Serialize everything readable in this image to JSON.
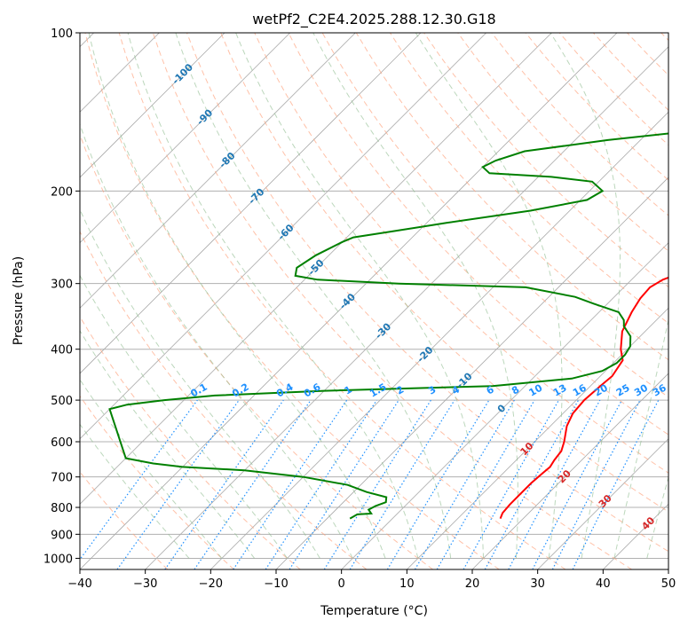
{
  "chart_data": {
    "type": "skew-t",
    "title": "wetPf2_C2E4.2025.288.12.30.G18",
    "xlabel": "Temperature (°C)",
    "ylabel": "Pressure (hPa)",
    "xlim": [
      -40,
      50
    ],
    "ylim": [
      1050,
      100
    ],
    "x_ticks": [
      {
        "value": -40,
        "label": "−40"
      },
      {
        "value": -30,
        "label": "−30"
      },
      {
        "value": -20,
        "label": "−20"
      },
      {
        "value": -10,
        "label": "−10"
      },
      {
        "value": 0,
        "label": "0"
      },
      {
        "value": 10,
        "label": "10"
      },
      {
        "value": 20,
        "label": "20"
      },
      {
        "value": 30,
        "label": "30"
      },
      {
        "value": 40,
        "label": "40"
      },
      {
        "value": 50,
        "label": "50"
      }
    ],
    "y_ticks": [
      {
        "value": 100,
        "label": "100"
      },
      {
        "value": 200,
        "label": "200"
      },
      {
        "value": 300,
        "label": "300"
      },
      {
        "value": 400,
        "label": "400"
      },
      {
        "value": 500,
        "label": "500"
      },
      {
        "value": 600,
        "label": "600"
      },
      {
        "value": 700,
        "label": "700"
      },
      {
        "value": 800,
        "label": "800"
      },
      {
        "value": 900,
        "label": "900"
      },
      {
        "value": 1000,
        "label": "1000"
      }
    ],
    "colors": {
      "temperature": "#ff0000",
      "dewpoint": "#008000",
      "isotherm": "#aaaaaa",
      "dry_adiabat": "#ffa07a",
      "moist_adiabat": "#8fbc8f",
      "mixing_ratio": "#1e90ff",
      "grid": "#b0b0b0",
      "isotherm_label": "#1f77b4",
      "dry_label": "#d62728",
      "mixing_label": "#1e90ff"
    },
    "series": [
      {
        "name": "Temperature",
        "color": "#ff0000",
        "points": [
          [
            16.5,
            840
          ],
          [
            16,
            820
          ],
          [
            15.8,
            790
          ],
          [
            15.8,
            760
          ],
          [
            15.8,
            720
          ],
          [
            16,
            690
          ],
          [
            16.2,
            670
          ],
          [
            15.8,
            650
          ],
          [
            15.5,
            625
          ],
          [
            14.5,
            600
          ],
          [
            12.5,
            560
          ],
          [
            11.5,
            530
          ],
          [
            11.2,
            500
          ],
          [
            11.5,
            470
          ],
          [
            11.8,
            450
          ],
          [
            11,
            420
          ],
          [
            9,
            400
          ],
          [
            6.5,
            370
          ],
          [
            5,
            340
          ],
          [
            4.2,
            320
          ],
          [
            4,
            305
          ],
          [
            4.8,
            295
          ],
          [
            6.8,
            285
          ],
          [
            7.5,
            275
          ],
          [
            6.5,
            260
          ],
          [
            4.5,
            245
          ],
          [
            2.5,
            230
          ],
          [
            0.8,
            215
          ],
          [
            -0.5,
            200
          ],
          [
            -0.8,
            188
          ],
          [
            -0.2,
            175
          ],
          [
            0,
            165
          ],
          [
            -0.8,
            155
          ],
          [
            -1.5,
            145
          ],
          [
            -1.5,
            138
          ],
          [
            -0.2,
            130
          ],
          [
            2,
            124
          ],
          [
            3,
            118
          ],
          [
            2.8,
            112
          ],
          [
            3,
            105
          ],
          [
            3.5,
            100
          ]
        ]
      },
      {
        "name": "Dewpoint",
        "color": "#008000",
        "points": [
          [
            -6.5,
            840
          ],
          [
            -6,
            825
          ],
          [
            -4,
            822
          ],
          [
            -5,
            808
          ],
          [
            -4.5,
            795
          ],
          [
            -3.5,
            782
          ],
          [
            -4.2,
            765
          ],
          [
            -8,
            748
          ],
          [
            -12,
            725
          ],
          [
            -20,
            700
          ],
          [
            -30,
            680
          ],
          [
            -40,
            670
          ],
          [
            -45,
            660
          ],
          [
            -50,
            645
          ],
          [
            -60,
            520
          ],
          [
            -58,
            510
          ],
          [
            -53,
            500
          ],
          [
            -46,
            490
          ],
          [
            -30,
            480
          ],
          [
            -5,
            470
          ],
          [
            6,
            455
          ],
          [
            9.5,
            440
          ],
          [
            10.5,
            425
          ],
          [
            10.5,
            410
          ],
          [
            10,
            395
          ],
          [
            8.5,
            378
          ],
          [
            6,
            362
          ],
          [
            5,
            352
          ],
          [
            3,
            340
          ],
          [
            -2,
            328
          ],
          [
            -6,
            318
          ],
          [
            -15,
            305
          ],
          [
            -35,
            300
          ],
          [
            -48,
            295
          ],
          [
            -52,
            290
          ],
          [
            -53,
            280
          ],
          [
            -52,
            265
          ],
          [
            -50,
            250
          ],
          [
            -49,
            245
          ],
          [
            -45,
            240
          ],
          [
            -37,
            230
          ],
          [
            -26,
            218
          ],
          [
            -19,
            208
          ],
          [
            -18,
            200
          ],
          [
            -21,
            192
          ],
          [
            -28,
            188
          ],
          [
            -38,
            185
          ],
          [
            -40,
            180
          ],
          [
            -39,
            175
          ],
          [
            -36,
            168
          ],
          [
            -25,
            160
          ],
          [
            -16,
            155
          ],
          [
            -13,
            150
          ],
          [
            -12,
            142
          ],
          [
            -12.5,
            135
          ],
          [
            -12,
            128
          ],
          [
            -9.5,
            122
          ],
          [
            -6,
            118
          ],
          [
            -4,
            113
          ],
          [
            -3,
            108
          ],
          [
            -2.5,
            104
          ],
          [
            -2,
            100
          ]
        ]
      }
    ],
    "isotherm_labels": [
      {
        "t": -100,
        "label": "-100"
      },
      {
        "t": -90,
        "label": "-90"
      },
      {
        "t": -80,
        "label": "-80"
      },
      {
        "t": -70,
        "label": "-70"
      },
      {
        "t": -60,
        "label": "-60"
      },
      {
        "t": -50,
        "label": "-50"
      },
      {
        "t": -40,
        "label": "-40"
      },
      {
        "t": -30,
        "label": "-30"
      },
      {
        "t": -20,
        "label": "-20"
      },
      {
        "t": -10,
        "label": "-10"
      },
      {
        "t": 0,
        "label": "0"
      }
    ],
    "dry_adiabat_labels": [
      {
        "t": 10,
        "label": "10"
      },
      {
        "t": 20,
        "label": "20"
      },
      {
        "t": 30,
        "label": "30"
      },
      {
        "t": 40,
        "label": "40"
      }
    ],
    "mixing_ratio_labels": [
      {
        "w": 0.1,
        "label": "0.1"
      },
      {
        "w": 0.2,
        "label": "0.2"
      },
      {
        "w": 0.4,
        "label": "0.4"
      },
      {
        "w": 0.6,
        "label": "0.6"
      },
      {
        "w": 1,
        "label": "1"
      },
      {
        "w": 1.5,
        "label": "1.5"
      },
      {
        "w": 2,
        "label": "2"
      },
      {
        "w": 3,
        "label": "3"
      },
      {
        "w": 4,
        "label": "4"
      },
      {
        "w": 6,
        "label": "6"
      },
      {
        "w": 8,
        "label": "8"
      },
      {
        "w": 10,
        "label": "10"
      },
      {
        "w": 13,
        "label": "13"
      },
      {
        "w": 16,
        "label": "16"
      },
      {
        "w": 20,
        "label": "20"
      },
      {
        "w": 25,
        "label": "25"
      },
      {
        "w": 30,
        "label": "30"
      },
      {
        "w": 36,
        "label": "36"
      }
    ]
  }
}
